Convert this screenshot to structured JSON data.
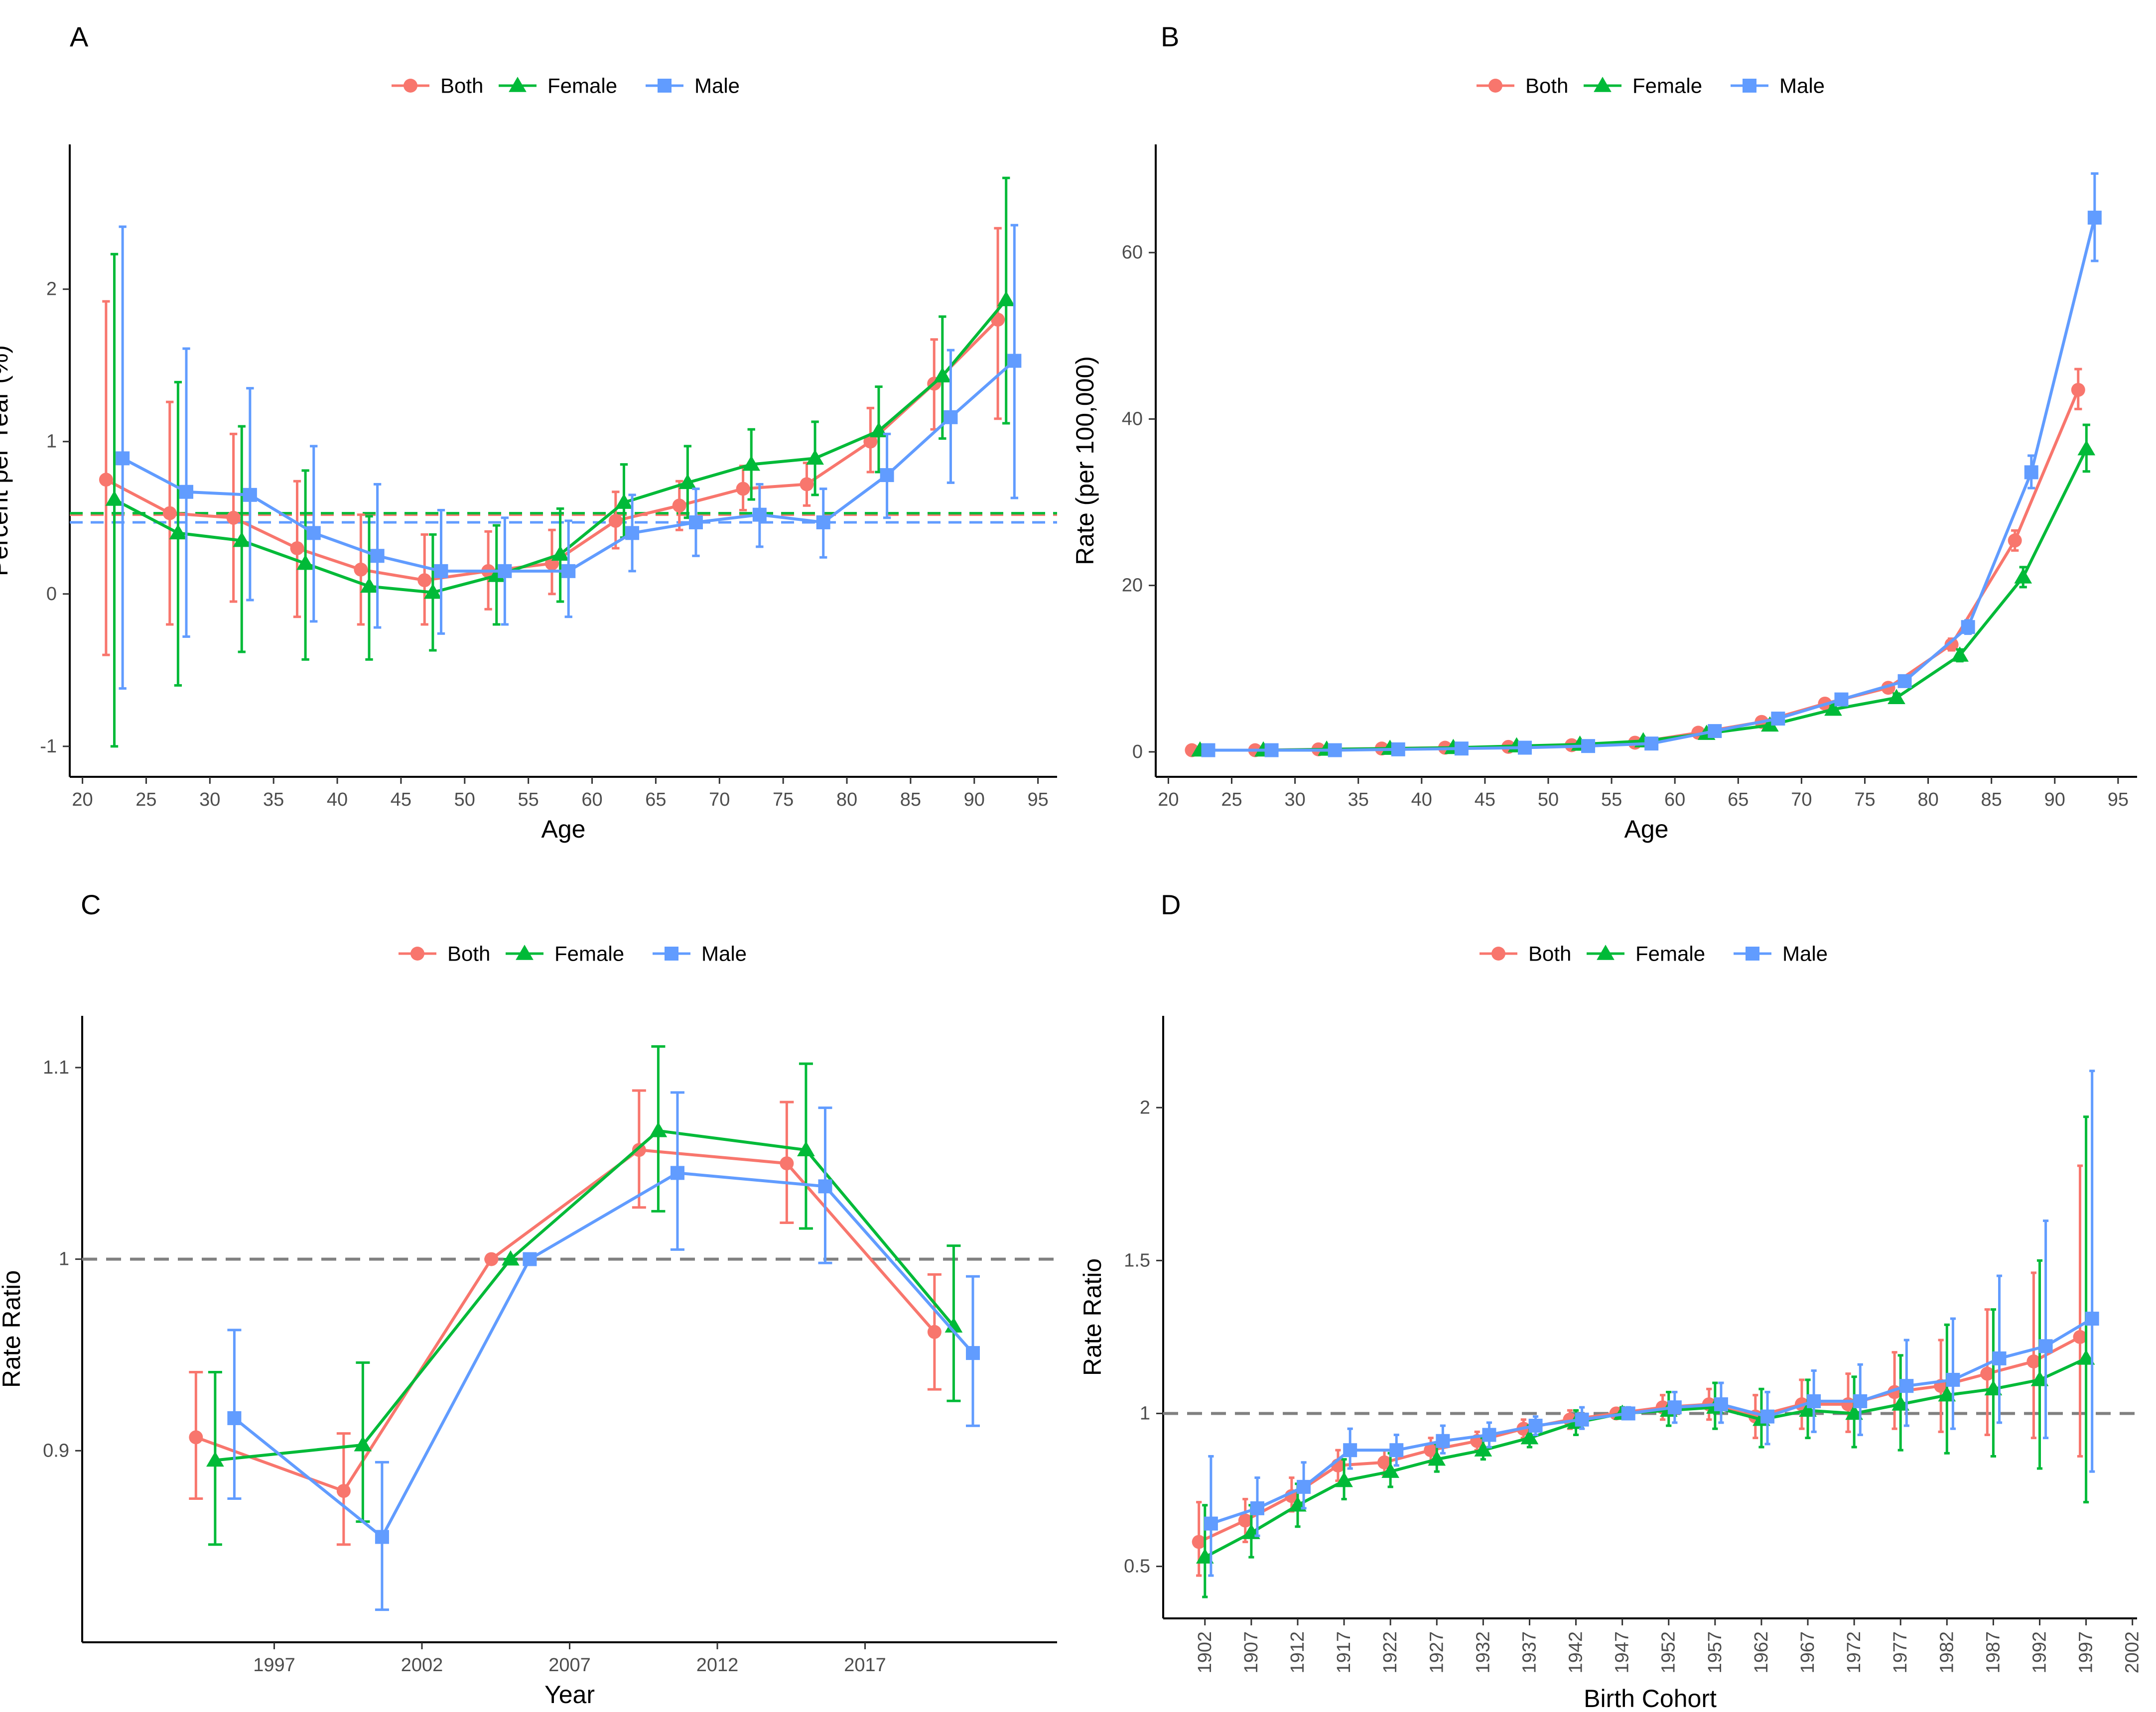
{
  "colors": {
    "Both": "#F8766D",
    "Female": "#00BA38",
    "Male": "#619CFF",
    "reference": "#808080"
  },
  "legend": [
    "Both",
    "Female",
    "Male"
  ],
  "chart_data": [
    {
      "panel": "A",
      "type": "line",
      "xlabel": "Age",
      "ylabel": "Percent per Year (%)",
      "x_ticks": [
        20,
        25,
        30,
        35,
        40,
        45,
        50,
        55,
        60,
        65,
        70,
        75,
        80,
        85,
        90,
        95
      ],
      "y_ticks": [
        -1,
        0,
        1,
        2
      ],
      "xlim": [
        19,
        96.5
      ],
      "ylim": [
        -1.2,
        2.95
      ],
      "x": [
        22.5,
        27.5,
        32.5,
        37.5,
        42.5,
        47.5,
        52.5,
        57.5,
        62.5,
        67.5,
        72.5,
        77.5,
        82.5,
        87.5,
        92.5
      ],
      "reference_lines": [
        {
          "series": "Both",
          "y": 0.52
        },
        {
          "series": "Female",
          "y": 0.53
        },
        {
          "series": "Male",
          "y": 0.47
        }
      ],
      "series": [
        {
          "name": "Both",
          "values": [
            0.75,
            0.53,
            0.5,
            0.3,
            0.16,
            0.09,
            0.15,
            0.2,
            0.48,
            0.58,
            0.69,
            0.72,
            1.0,
            1.38,
            1.8
          ],
          "lower": [
            -0.4,
            -0.2,
            -0.05,
            -0.15,
            -0.2,
            -0.2,
            -0.1,
            0.0,
            0.3,
            0.42,
            0.55,
            0.58,
            0.8,
            1.08,
            1.15
          ],
          "upper": [
            1.92,
            1.26,
            1.05,
            0.74,
            0.52,
            0.39,
            0.41,
            0.42,
            0.67,
            0.74,
            0.84,
            0.86,
            1.22,
            1.67,
            2.4
          ]
        },
        {
          "name": "Female",
          "values": [
            0.62,
            0.4,
            0.35,
            0.2,
            0.05,
            0.01,
            0.12,
            0.26,
            0.6,
            0.73,
            0.85,
            0.89,
            1.07,
            1.43,
            1.93
          ],
          "lower": [
            -1.0,
            -0.6,
            -0.38,
            -0.43,
            -0.43,
            -0.37,
            -0.2,
            -0.05,
            0.37,
            0.5,
            0.62,
            0.65,
            0.8,
            1.02,
            1.12
          ],
          "upper": [
            2.23,
            1.39,
            1.1,
            0.81,
            0.51,
            0.39,
            0.45,
            0.56,
            0.85,
            0.97,
            1.08,
            1.13,
            1.36,
            1.82,
            2.73
          ]
        },
        {
          "name": "Male",
          "values": [
            0.89,
            0.67,
            0.65,
            0.4,
            0.25,
            0.15,
            0.15,
            0.15,
            0.4,
            0.47,
            0.52,
            0.47,
            0.78,
            1.16,
            1.53
          ],
          "lower": [
            -0.62,
            -0.28,
            -0.04,
            -0.18,
            -0.22,
            -0.26,
            -0.2,
            -0.15,
            0.15,
            0.25,
            0.31,
            0.24,
            0.5,
            0.73,
            0.63
          ],
          "upper": [
            2.41,
            1.61,
            1.35,
            0.97,
            0.72,
            0.55,
            0.5,
            0.48,
            0.65,
            0.69,
            0.72,
            0.69,
            1.05,
            1.6,
            2.42
          ]
        }
      ]
    },
    {
      "panel": "B",
      "type": "line",
      "xlabel": "Age",
      "ylabel": "Rate (per 100,000)",
      "x_ticks": [
        20,
        25,
        30,
        35,
        40,
        45,
        50,
        55,
        60,
        65,
        70,
        75,
        80,
        85,
        90,
        95
      ],
      "y_ticks": [
        0,
        20,
        40,
        60
      ],
      "xlim": [
        19,
        96.5
      ],
      "ylim": [
        -3,
        73
      ],
      "x": [
        22.5,
        27.5,
        32.5,
        37.5,
        42.5,
        47.5,
        52.5,
        57.5,
        62.5,
        67.5,
        72.5,
        77.5,
        82.5,
        87.5,
        92.5
      ],
      "series": [
        {
          "name": "Both",
          "values": [
            0.2,
            0.2,
            0.3,
            0.4,
            0.5,
            0.6,
            0.8,
            1.1,
            2.3,
            3.6,
            5.8,
            7.7,
            12.9,
            25.4,
            43.5
          ],
          "lower": [
            0.1,
            0.1,
            0.2,
            0.3,
            0.4,
            0.5,
            0.7,
            1.0,
            2.1,
            3.3,
            5.4,
            7.2,
            12.2,
            24.2,
            41.2
          ],
          "upper": [
            0.3,
            0.3,
            0.4,
            0.5,
            0.6,
            0.7,
            0.9,
            1.2,
            2.5,
            3.9,
            6.2,
            8.2,
            13.6,
            26.6,
            46.0
          ]
        },
        {
          "name": "Female",
          "values": [
            0.2,
            0.2,
            0.3,
            0.4,
            0.5,
            0.7,
            0.9,
            1.3,
            2.2,
            3.2,
            5.1,
            6.5,
            11.6,
            21.0,
            36.4
          ],
          "lower": [
            0.1,
            0.1,
            0.2,
            0.3,
            0.4,
            0.6,
            0.8,
            1.2,
            2.0,
            2.9,
            4.7,
            6.0,
            10.9,
            19.8,
            33.7
          ],
          "upper": [
            0.3,
            0.3,
            0.4,
            0.5,
            0.6,
            0.8,
            1.0,
            1.4,
            2.4,
            3.5,
            5.5,
            7.0,
            12.3,
            22.2,
            39.3
          ]
        },
        {
          "name": "Male",
          "values": [
            0.2,
            0.2,
            0.2,
            0.3,
            0.4,
            0.5,
            0.7,
            1.0,
            2.5,
            4.0,
            6.3,
            8.5,
            15.0,
            33.6,
            64.2
          ],
          "lower": [
            0.1,
            0.1,
            0.1,
            0.2,
            0.3,
            0.4,
            0.6,
            0.9,
            2.2,
            3.6,
            5.8,
            7.9,
            14.2,
            31.7,
            59.0
          ],
          "upper": [
            0.3,
            0.3,
            0.3,
            0.4,
            0.5,
            0.6,
            0.8,
            1.1,
            2.7,
            4.3,
            6.8,
            9.1,
            15.8,
            35.6,
            69.5
          ]
        }
      ]
    },
    {
      "panel": "C",
      "type": "line",
      "xlabel": "Year",
      "ylabel": "Rate Ratio",
      "x_ticks": [
        1997,
        2002,
        2007,
        2012,
        2017
      ],
      "y_ticks": [
        0.9,
        1.0,
        1.1
      ],
      "xlim": [
        1990.5,
        2023.5
      ],
      "ylim": [
        0.8,
        1.127
      ],
      "reference_line": 1.0,
      "x": [
        1995,
        2000,
        2005,
        2010,
        2015,
        2020
      ],
      "series": [
        {
          "name": "Both",
          "values": [
            0.907,
            0.879,
            1.0,
            1.057,
            1.05,
            0.962
          ],
          "lower": [
            0.875,
            0.851,
            1.0,
            1.027,
            1.019,
            0.932
          ],
          "upper": [
            0.941,
            0.909,
            1.0,
            1.088,
            1.082,
            0.992
          ]
        },
        {
          "name": "Female",
          "values": [
            0.895,
            0.903,
            1.0,
            1.067,
            1.057,
            0.965
          ],
          "lower": [
            0.851,
            0.863,
            1.0,
            1.025,
            1.016,
            0.926
          ],
          "upper": [
            0.941,
            0.946,
            1.0,
            1.111,
            1.102,
            1.007
          ]
        },
        {
          "name": "Male",
          "values": [
            0.917,
            0.855,
            1.0,
            1.045,
            1.038,
            0.951
          ],
          "lower": [
            0.875,
            0.817,
            1.0,
            1.005,
            0.998,
            0.913
          ],
          "upper": [
            0.963,
            0.894,
            1.0,
            1.087,
            1.079,
            0.991
          ]
        }
      ]
    },
    {
      "panel": "D",
      "type": "line",
      "xlabel": "Birth Cohort",
      "ylabel": "Rate Ratio",
      "x_ticks": [
        1902,
        1907,
        1912,
        1917,
        1922,
        1927,
        1932,
        1937,
        1942,
        1947,
        1952,
        1957,
        1962,
        1967,
        1972,
        1977,
        1982,
        1987,
        1992,
        1997,
        2002
      ],
      "y_ticks": [
        0.5,
        1.0,
        1.5,
        2.0
      ],
      "xlim": [
        1897.5,
        2002.5
      ],
      "ylim": [
        0.33,
        2.3
      ],
      "reference_line": 1.0,
      "x": [
        1902,
        1907,
        1912,
        1917,
        1922,
        1927,
        1932,
        1937,
        1942,
        1947,
        1952,
        1957,
        1962,
        1967,
        1972,
        1977,
        1982,
        1987,
        1992,
        1997
      ],
      "series": [
        {
          "name": "Both",
          "values": [
            0.58,
            0.65,
            0.73,
            0.83,
            0.84,
            0.88,
            0.91,
            0.95,
            0.98,
            1.0,
            1.02,
            1.03,
            0.99,
            1.03,
            1.03,
            1.07,
            1.09,
            1.13,
            1.17,
            1.25
          ],
          "lower": [
            0.47,
            0.58,
            0.68,
            0.78,
            0.8,
            0.84,
            0.88,
            0.92,
            0.95,
            0.99,
            0.98,
            0.98,
            0.92,
            0.95,
            0.94,
            0.95,
            0.94,
            0.93,
            0.92,
            0.86
          ],
          "upper": [
            0.71,
            0.72,
            0.79,
            0.88,
            0.88,
            0.92,
            0.94,
            0.98,
            1.01,
            1.01,
            1.06,
            1.08,
            1.06,
            1.11,
            1.13,
            1.2,
            1.24,
            1.34,
            1.46,
            1.81
          ]
        },
        {
          "name": "Female",
          "values": [
            0.53,
            0.61,
            0.7,
            0.78,
            0.81,
            0.85,
            0.88,
            0.92,
            0.97,
            1.0,
            1.01,
            1.02,
            0.98,
            1.01,
            1.0,
            1.03,
            1.06,
            1.08,
            1.11,
            1.18
          ],
          "lower": [
            0.4,
            0.53,
            0.63,
            0.72,
            0.76,
            0.81,
            0.85,
            0.89,
            0.93,
            0.99,
            0.96,
            0.95,
            0.89,
            0.92,
            0.89,
            0.88,
            0.87,
            0.86,
            0.82,
            0.71
          ],
          "upper": [
            0.7,
            0.7,
            0.77,
            0.85,
            0.87,
            0.9,
            0.92,
            0.96,
            1.01,
            1.02,
            1.07,
            1.1,
            1.08,
            1.11,
            1.12,
            1.19,
            1.29,
            1.34,
            1.5,
            1.97
          ]
        },
        {
          "name": "Male",
          "values": [
            0.64,
            0.69,
            0.76,
            0.88,
            0.88,
            0.91,
            0.93,
            0.96,
            0.98,
            1.0,
            1.02,
            1.03,
            0.99,
            1.04,
            1.04,
            1.09,
            1.11,
            1.18,
            1.22,
            1.31
          ],
          "lower": [
            0.47,
            0.6,
            0.69,
            0.82,
            0.83,
            0.87,
            0.89,
            0.93,
            0.95,
            0.99,
            0.97,
            0.97,
            0.9,
            0.94,
            0.93,
            0.96,
            0.95,
            0.97,
            0.92,
            0.81
          ],
          "upper": [
            0.86,
            0.79,
            0.84,
            0.95,
            0.93,
            0.96,
            0.97,
            0.99,
            1.02,
            1.02,
            1.07,
            1.1,
            1.07,
            1.14,
            1.16,
            1.24,
            1.31,
            1.45,
            1.63,
            2.12
          ]
        }
      ]
    }
  ]
}
